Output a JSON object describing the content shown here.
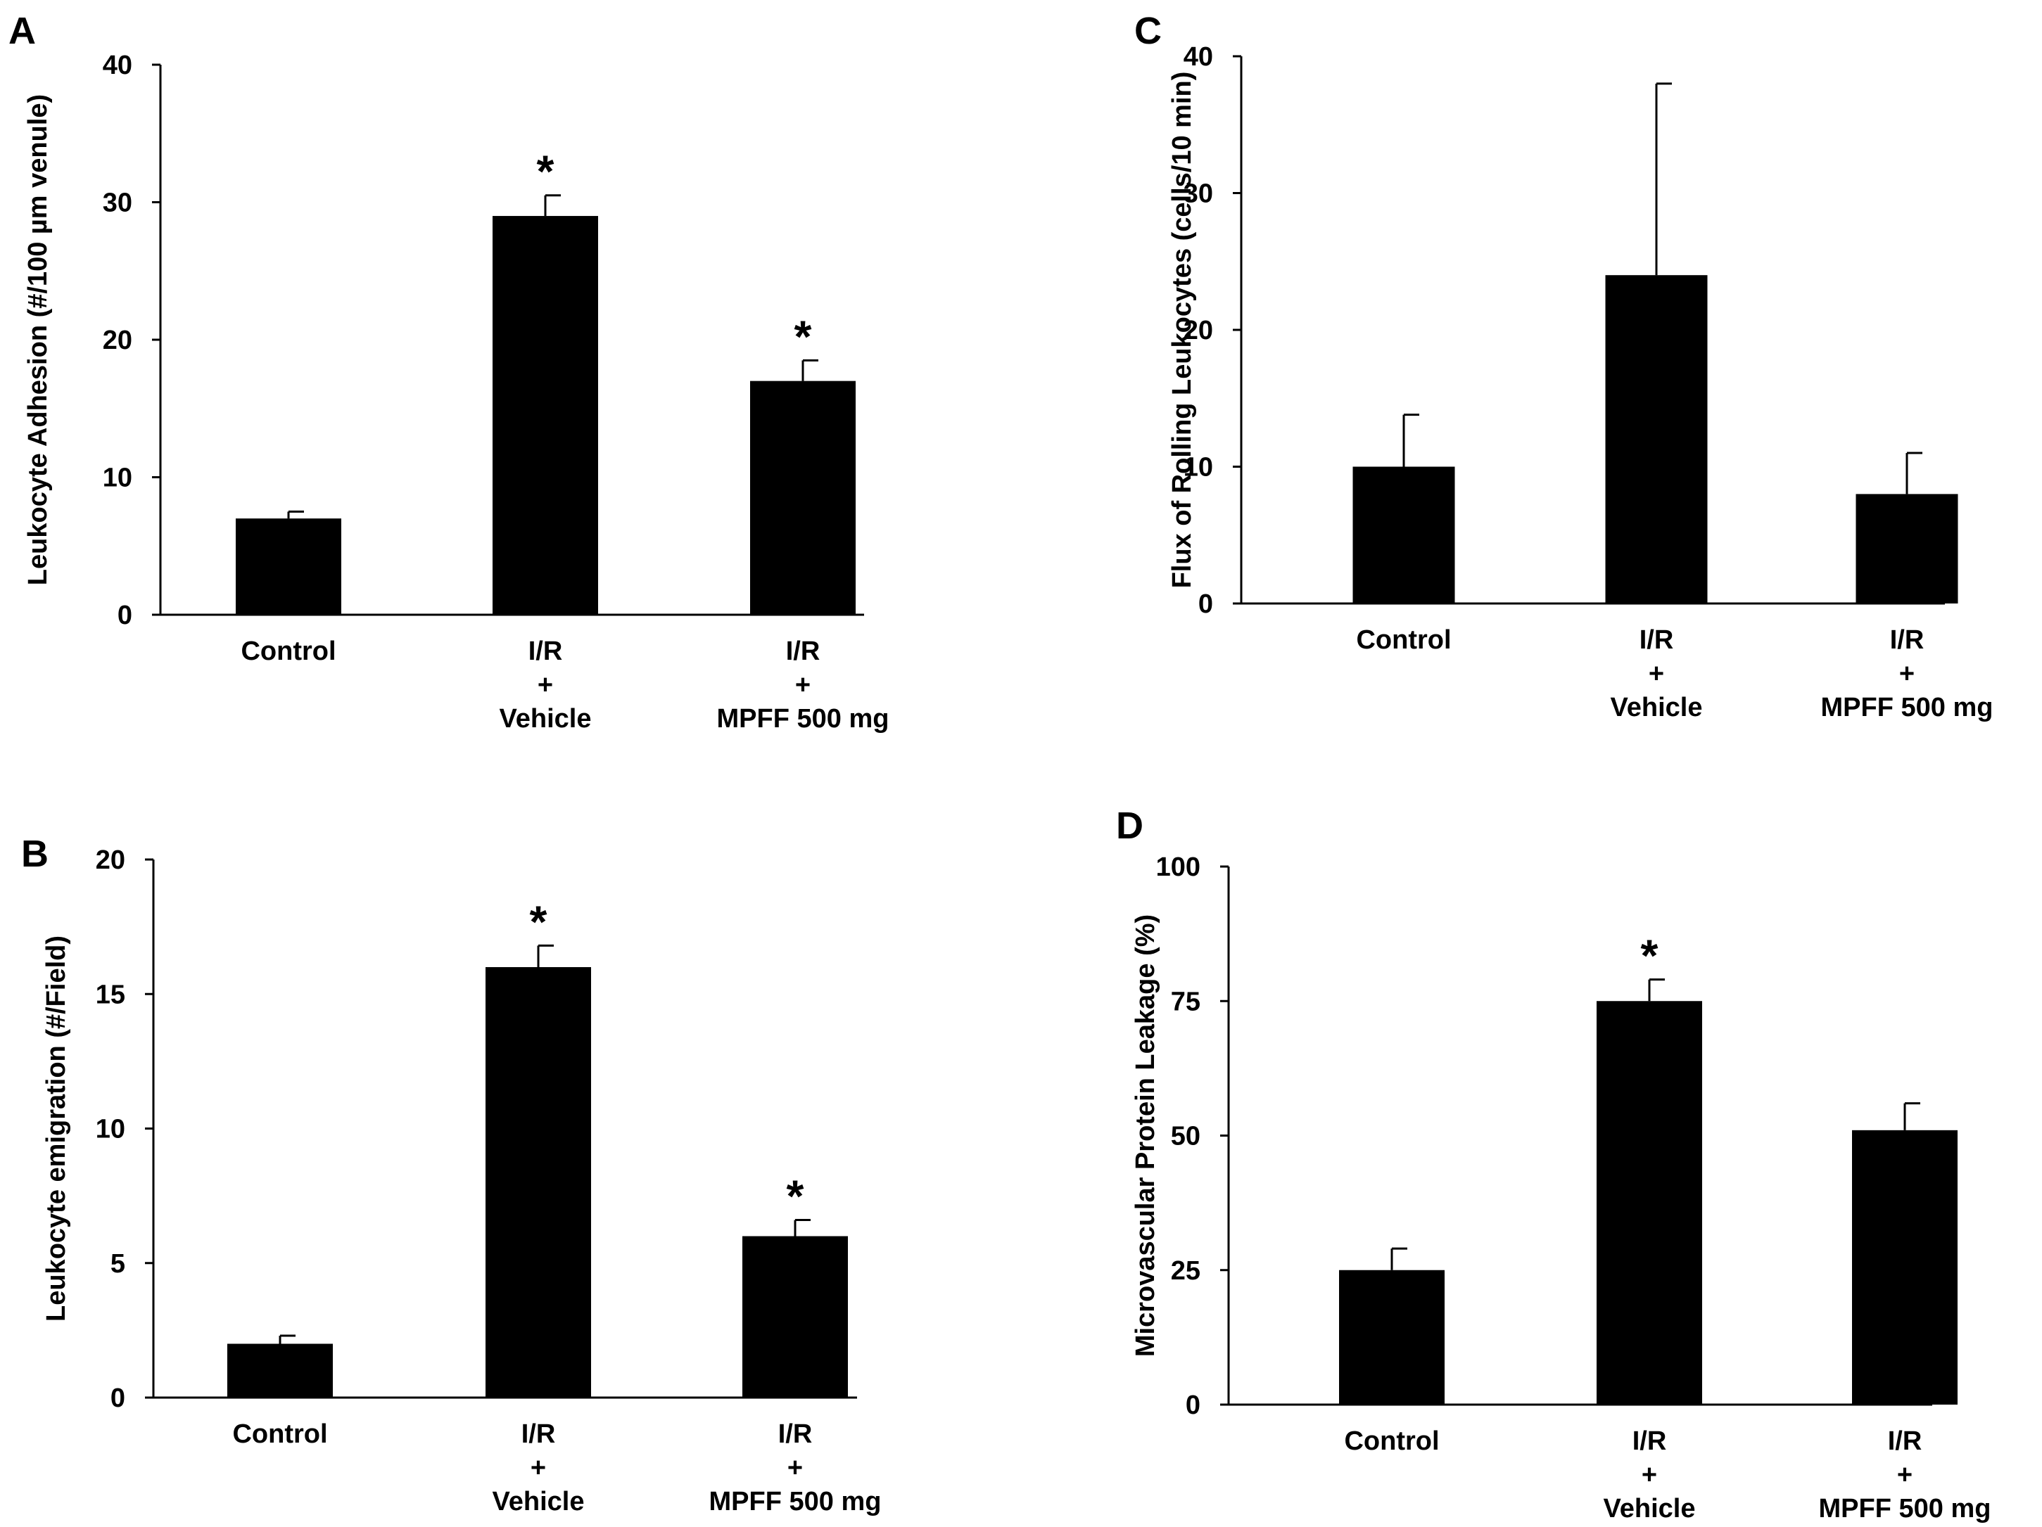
{
  "figure": {
    "colors": {
      "bar": "#000000",
      "axis": "#000000",
      "background": "#ffffff"
    }
  },
  "chart_data": [
    {
      "panel": "A",
      "type": "bar",
      "title": "",
      "xlabel": "",
      "ylabel": "Leukocyte Adhesion (#/100 µm venule)",
      "categories": [
        [
          "Control"
        ],
        [
          "I/R",
          "+",
          "Vehicle"
        ],
        [
          "I/R",
          "+",
          "MPFF 500 mg"
        ]
      ],
      "values": [
        7,
        29,
        17
      ],
      "errors": [
        0.5,
        1.5,
        1.5
      ],
      "significance": [
        "",
        "*",
        "*"
      ],
      "ylim": [
        0,
        40
      ],
      "yticks": [
        0,
        10,
        20,
        30,
        40
      ],
      "grid": false
    },
    {
      "panel": "B",
      "type": "bar",
      "title": "",
      "xlabel": "",
      "ylabel": "Leukocyte emigration (#/Field)",
      "categories": [
        [
          "Control"
        ],
        [
          "I/R",
          "+",
          "Vehicle"
        ],
        [
          "I/R",
          "+",
          "MPFF 500 mg"
        ]
      ],
      "values": [
        2,
        16,
        6
      ],
      "errors": [
        0.3,
        0.8,
        0.6
      ],
      "significance": [
        "",
        "*",
        "*"
      ],
      "ylim": [
        0,
        20
      ],
      "yticks": [
        0,
        5,
        10,
        15,
        20
      ],
      "grid": false
    },
    {
      "panel": "C",
      "type": "bar",
      "title": "",
      "xlabel": "",
      "ylabel": "Flux of Rolling Leukocytes (cells/10 min)",
      "categories": [
        [
          "Control"
        ],
        [
          "I/R",
          "+",
          "Vehicle"
        ],
        [
          "I/R",
          "+",
          "MPFF 500 mg"
        ]
      ],
      "values": [
        10,
        24,
        8
      ],
      "errors": [
        3.8,
        14,
        3
      ],
      "significance": [
        "",
        "",
        ""
      ],
      "ylim": [
        0,
        40
      ],
      "yticks": [
        0,
        10,
        20,
        30,
        40
      ],
      "grid": false
    },
    {
      "panel": "D",
      "type": "bar",
      "title": "",
      "xlabel": "",
      "ylabel": "Microvascular Protein Leakage (%)",
      "categories": [
        [
          "Control"
        ],
        [
          "I/R",
          "+",
          "Vehicle"
        ],
        [
          "I/R",
          "+",
          "MPFF 500 mg"
        ]
      ],
      "values": [
        25,
        75,
        51
      ],
      "errors": [
        4,
        4,
        5
      ],
      "significance": [
        "",
        "*",
        ""
      ],
      "ylim": [
        0,
        100
      ],
      "yticks": [
        0,
        25,
        50,
        75,
        100
      ],
      "grid": false
    }
  ]
}
